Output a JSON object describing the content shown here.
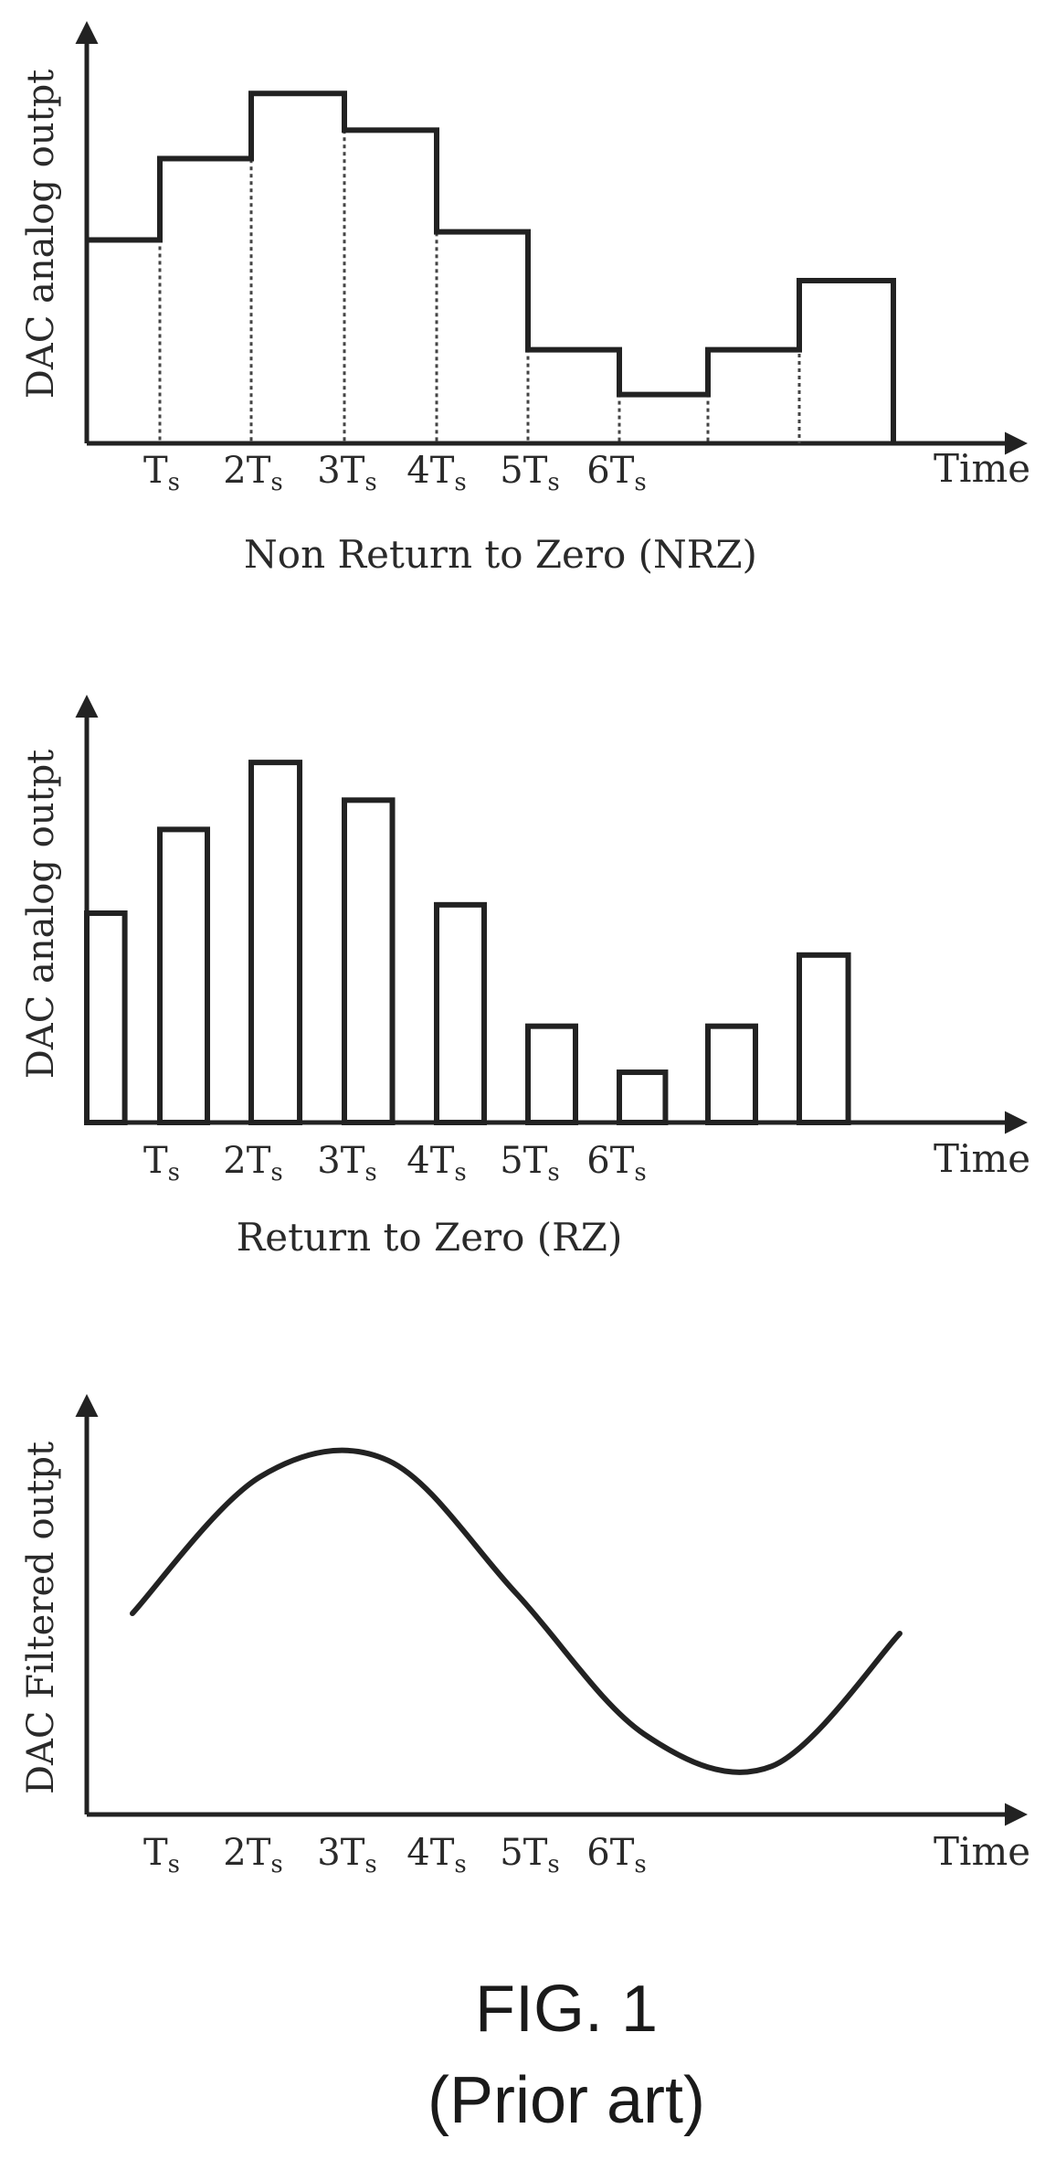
{
  "chart_data": [
    {
      "type": "line",
      "style": "step",
      "caption": "Non Return to Zero (NRZ)",
      "ylabel": "DAC analog outpt",
      "xlabel": "Time",
      "ticks": [
        {
          "base": "T",
          "sub": "s"
        },
        {
          "base": "2T",
          "sub": "s"
        },
        {
          "base": "3T",
          "sub": "s"
        },
        {
          "base": "4T",
          "sub": "s"
        },
        {
          "base": "5T",
          "sub": "s"
        },
        {
          "base": "6T",
          "sub": "s"
        }
      ],
      "values": [
        0.5,
        0.7,
        0.86,
        0.77,
        0.52,
        0.23,
        0.12,
        0.23,
        0.4
      ]
    },
    {
      "type": "bar",
      "caption": "Return to Zero (RZ)",
      "ylabel": "DAC analog outpt",
      "xlabel": "Time",
      "ticks": [
        {
          "base": "T",
          "sub": "s"
        },
        {
          "base": "2T",
          "sub": "s"
        },
        {
          "base": "3T",
          "sub": "s"
        },
        {
          "base": "4T",
          "sub": "s"
        },
        {
          "base": "5T",
          "sub": "s"
        },
        {
          "base": "6T",
          "sub": "s"
        }
      ],
      "values": [
        0.5,
        0.7,
        0.86,
        0.77,
        0.52,
        0.23,
        0.12,
        0.23,
        0.4
      ]
    },
    {
      "type": "line",
      "style": "smooth",
      "caption": "",
      "ylabel": "DAC Filtered outpt",
      "xlabel": "Time",
      "ticks": [
        {
          "base": "T",
          "sub": "s"
        },
        {
          "base": "2T",
          "sub": "s"
        },
        {
          "base": "3T",
          "sub": "s"
        },
        {
          "base": "4T",
          "sub": "s"
        },
        {
          "base": "5T",
          "sub": "s"
        },
        {
          "base": "6T",
          "sub": "s"
        }
      ],
      "values": [
        0.5,
        0.84,
        0.88,
        0.55,
        0.2,
        0.12,
        0.45
      ]
    }
  ],
  "figure": {
    "title": "FIG. 1",
    "subtitle": "(Prior art)"
  }
}
